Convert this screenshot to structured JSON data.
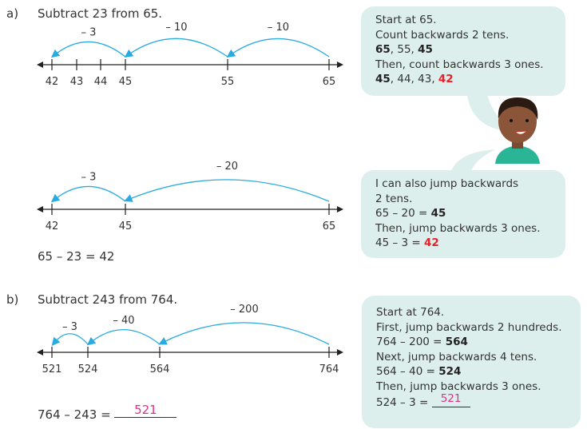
{
  "part_a": {
    "label": "a)",
    "title": "Subtract 23 from 65.",
    "equation": "65 – 23 = 42"
  },
  "part_b": {
    "label": "b)",
    "title": "Subtract 243 from 764.",
    "equation": "764 – 243 = ",
    "answer": "521"
  },
  "number_lines": [
    {
      "ticks": [
        "42",
        "43",
        "44",
        "45",
        "55",
        "65"
      ],
      "jumps": [
        {
          "from": "65",
          "to": "55",
          "label": "– 10"
        },
        {
          "from": "55",
          "to": "45",
          "label": "– 10"
        },
        {
          "from": "45",
          "to": "42",
          "label": "– 3"
        }
      ]
    },
    {
      "ticks": [
        "42",
        "45",
        "65"
      ],
      "jumps": [
        {
          "from": "65",
          "to": "45",
          "label": "– 20"
        },
        {
          "from": "45",
          "to": "42",
          "label": "– 3"
        }
      ]
    },
    {
      "ticks": [
        "521",
        "524",
        "564",
        "764"
      ],
      "jumps": [
        {
          "from": "764",
          "to": "564",
          "label": "– 200"
        },
        {
          "from": "564",
          "to": "524",
          "label": "– 40"
        },
        {
          "from": "524",
          "to": "521",
          "label": "– 3"
        }
      ]
    }
  ],
  "bubble1": {
    "l1": "Start at 65.",
    "l2": "Count backwards 2 tens.",
    "l3a": "65",
    "l3b": ", 55, ",
    "l3c": "45",
    "l4": "Then, count backwards 3 ones.",
    "l5a": "45",
    "l5b": ", 44, 43, ",
    "l5c": "42"
  },
  "bubble2": {
    "l1": "I can also jump backwards",
    "l2": "2 tens.",
    "l3a": "65 – 20 = ",
    "l3b": "45",
    "l4": "Then, jump backwards 3 ones.",
    "l5a": "45 – 3 = ",
    "l5b": "42"
  },
  "bubble3": {
    "l1": "Start at 764.",
    "l2": "First, jump backwards 2 hundreds.",
    "l3a": "764 – 200 = ",
    "l3b": "564",
    "l4": "Next, jump backwards 4 tens.",
    "l5a": "564 – 40 = ",
    "l5b": "524",
    "l6": "Then, jump backwards 3 ones.",
    "l7a": "524 – 3 = ",
    "l7b": "521"
  },
  "colors": {
    "arrow": "#29abe2",
    "bubble": "#dcefec",
    "highlight": "#e8202a",
    "answer": "#e0308a"
  }
}
